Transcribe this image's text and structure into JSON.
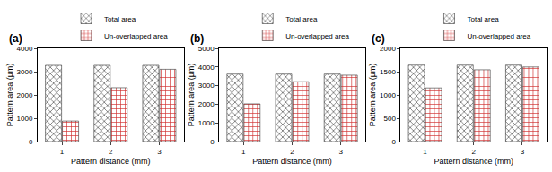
{
  "chart_data": [
    {
      "type": "bar",
      "title": "(a)",
      "x_label": "Pattern distance (mm)",
      "y_label": "Pattern area (μm)",
      "categories": [
        "1",
        "2",
        "3"
      ],
      "series": [
        {
          "name": "Total area",
          "color": "#a6a6a6",
          "values": [
            3270,
            3270,
            3270
          ]
        },
        {
          "name": "Un-overlapped area",
          "color": "#f7b8b8",
          "values": [
            880,
            2310,
            3100
          ]
        }
      ],
      "ylim": [
        0,
        4000
      ],
      "yticks": [
        0,
        1000,
        2000,
        3000,
        4000
      ],
      "grid": false
    },
    {
      "type": "bar",
      "title": "(b)",
      "x_label": "Pattern distance (mm)",
      "y_label": "Pattern area (μm)",
      "categories": [
        "1",
        "2",
        "3"
      ],
      "series": [
        {
          "name": "Total area",
          "color": "#a6a6a6",
          "values": [
            3620,
            3620,
            3620
          ]
        },
        {
          "name": "Un-overlapped area",
          "color": "#f7b8b8",
          "values": [
            2020,
            3210,
            3560
          ]
        }
      ],
      "ylim": [
        0,
        5000
      ],
      "yticks": [
        0,
        1000,
        2000,
        3000,
        4000,
        5000
      ],
      "grid": false
    },
    {
      "type": "bar",
      "title": "(c)",
      "x_label": "Pattern distance (mm)",
      "y_label": "Pattern area (μm)",
      "categories": [
        "1",
        "2",
        "3"
      ],
      "series": [
        {
          "name": "Total area",
          "color": "#a6a6a6",
          "values": [
            1640,
            1640,
            1640
          ]
        },
        {
          "name": "Un-overlapped area",
          "color": "#f7b8b8",
          "values": [
            1150,
            1540,
            1600
          ]
        }
      ],
      "ylim": [
        0,
        2000
      ],
      "yticks": [
        0,
        500,
        1000,
        1500,
        2000
      ],
      "grid": false
    }
  ]
}
